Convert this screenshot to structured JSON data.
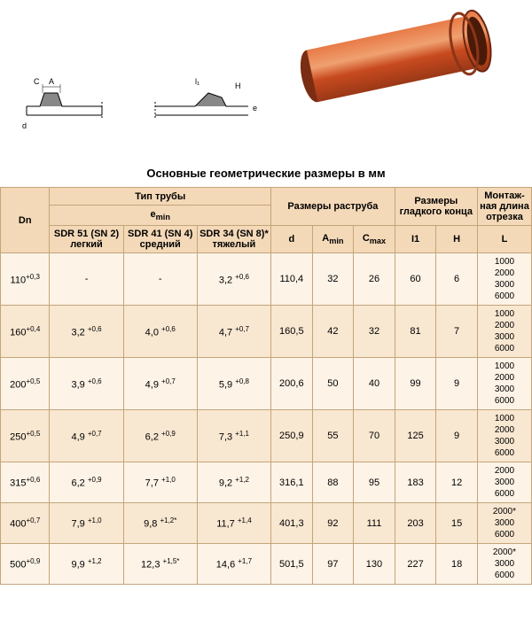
{
  "title": "Основные геометрические размеры в мм",
  "headers": {
    "dn": "Dn",
    "pipe_type": "Тип трубы",
    "emin": "e",
    "emin_sub": "min",
    "sdr51": "SDR 51 (SN 2) легкий",
    "sdr41": "SDR 41 (SN 4) средний",
    "sdr34": "SDR 34 (SN 8)* тяжелый",
    "socket": "Размеры раструба",
    "d": "d",
    "amin": "A",
    "amin_sub": "min",
    "cmax": "C",
    "cmax_sub": "max",
    "smooth": "Размеры гладкого конца",
    "i1": "I1",
    "h": "H",
    "mount": "Монтаж-ная длина отрезка",
    "l": "L"
  },
  "rows": [
    {
      "dn": "110",
      "dn_sup": "+0,3",
      "sdr51": "-",
      "sdr51_sup": "",
      "sdr41": "-",
      "sdr41_sup": "",
      "sdr34": "3,2",
      "sdr34_sup": "+0,6",
      "d": "110,4",
      "amin": "32",
      "cmax": "26",
      "i1": "60",
      "h": "6",
      "l": "1000\n2000\n3000\n6000"
    },
    {
      "dn": "160",
      "dn_sup": "+0,4",
      "sdr51": "3,2",
      "sdr51_sup": "+0,6",
      "sdr41": "4,0",
      "sdr41_sup": "+0,6",
      "sdr34": "4,7",
      "sdr34_sup": "+0,7",
      "d": "160,5",
      "amin": "42",
      "cmax": "32",
      "i1": "81",
      "h": "7",
      "l": "1000\n2000\n3000\n6000"
    },
    {
      "dn": "200",
      "dn_sup": "+0,5",
      "sdr51": "3,9",
      "sdr51_sup": "+0,6",
      "sdr41": "4,9",
      "sdr41_sup": "+0,7",
      "sdr34": "5,9",
      "sdr34_sup": "+0,8",
      "d": "200,6",
      "amin": "50",
      "cmax": "40",
      "i1": "99",
      "h": "9",
      "l": "1000\n2000\n3000\n6000"
    },
    {
      "dn": "250",
      "dn_sup": "+0,5",
      "sdr51": "4,9",
      "sdr51_sup": "+0,7",
      "sdr41": "6,2",
      "sdr41_sup": "+0,9",
      "sdr34": "7,3",
      "sdr34_sup": "+1,1",
      "d": "250,9",
      "amin": "55",
      "cmax": "70",
      "i1": "125",
      "h": "9",
      "l": "1000\n2000\n3000\n6000"
    },
    {
      "dn": "315",
      "dn_sup": "+0,6",
      "sdr51": "6,2",
      "sdr51_sup": "+0,9",
      "sdr41": "7,7",
      "sdr41_sup": "+1,0",
      "sdr34": "9,2",
      "sdr34_sup": "+1,2",
      "d": "316,1",
      "amin": "88",
      "cmax": "95",
      "i1": "183",
      "h": "12",
      "l": "2000\n3000\n6000"
    },
    {
      "dn": "400",
      "dn_sup": "+0,7",
      "sdr51": "7,9",
      "sdr51_sup": "+1,0",
      "sdr41": "9,8",
      "sdr41_sup": "+1,2*",
      "sdr34": "11,7",
      "sdr34_sup": "+1,4",
      "d": "401,3",
      "amin": "92",
      "cmax": "111",
      "i1": "203",
      "h": "15",
      "l": "2000*\n3000\n6000"
    },
    {
      "dn": "500",
      "dn_sup": "+0,9",
      "sdr51": "9,9",
      "sdr51_sup": "+1,2",
      "sdr41": "12,3",
      "sdr41_sup": "+1,5*",
      "sdr34": "14,6",
      "sdr34_sup": "+1,7",
      "d": "501,5",
      "amin": "97",
      "cmax": "130",
      "i1": "227",
      "h": "18",
      "l": "2000*\n3000\n6000"
    }
  ],
  "colors": {
    "border": "#c4a57a",
    "header_bg": "#f4d9b8",
    "row_bg": "#fdf3e7",
    "row_alt_bg": "#f8e7d1",
    "pipe_color": "#d4562c"
  }
}
